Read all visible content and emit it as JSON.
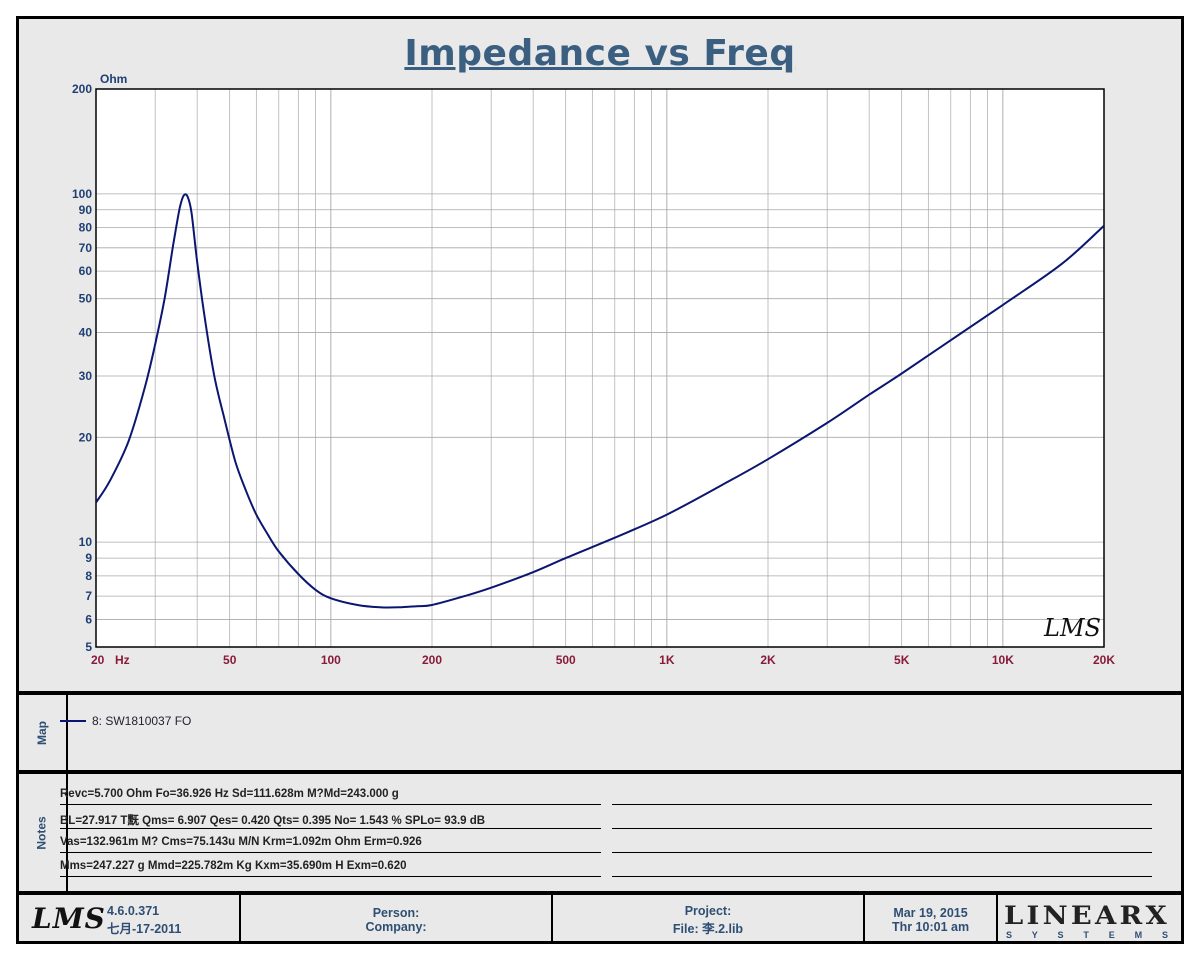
{
  "chart_data": {
    "type": "line",
    "title": "Impedance vs Freq",
    "ylabel": "Ohm",
    "xlabel_unit": "Hz",
    "x_scale": "log",
    "y_scale": "log",
    "xlim": [
      20,
      20000
    ],
    "ylim": [
      5,
      200
    ],
    "grid": true,
    "x_ticks": [
      {
        "value": 20,
        "label": "20"
      },
      {
        "value": 50,
        "label": "50"
      },
      {
        "value": 100,
        "label": "100"
      },
      {
        "value": 200,
        "label": "200"
      },
      {
        "value": 500,
        "label": "500"
      },
      {
        "value": 1000,
        "label": "1K"
      },
      {
        "value": 2000,
        "label": "2K"
      },
      {
        "value": 5000,
        "label": "5K"
      },
      {
        "value": 10000,
        "label": "10K"
      },
      {
        "value": 20000,
        "label": "20K"
      }
    ],
    "y_ticks": [
      {
        "value": 5,
        "label": "5"
      },
      {
        "value": 6,
        "label": "6"
      },
      {
        "value": 7,
        "label": "7"
      },
      {
        "value": 8,
        "label": "8"
      },
      {
        "value": 9,
        "label": "9"
      },
      {
        "value": 10,
        "label": "10"
      },
      {
        "value": 20,
        "label": "20"
      },
      {
        "value": 30,
        "label": "30"
      },
      {
        "value": 40,
        "label": "40"
      },
      {
        "value": 50,
        "label": "50"
      },
      {
        "value": 60,
        "label": "60"
      },
      {
        "value": 70,
        "label": "70"
      },
      {
        "value": 80,
        "label": "80"
      },
      {
        "value": 90,
        "label": "90"
      },
      {
        "value": 100,
        "label": "100"
      },
      {
        "value": 200,
        "label": "200"
      }
    ],
    "series": [
      {
        "name": "8: SW1810037 FO",
        "color": "#0a1670",
        "x": [
          20,
          22,
          25,
          28,
          30,
          32,
          34,
          35.5,
          36.5,
          37.5,
          38.5,
          40,
          42,
          45,
          48,
          52,
          56,
          60,
          65,
          70,
          80,
          90,
          100,
          120,
          140,
          160,
          180,
          200,
          250,
          300,
          400,
          500,
          700,
          1000,
          1500,
          2000,
          3000,
          4000,
          5000,
          7000,
          10000,
          15000,
          20000
        ],
        "y": [
          13,
          15,
          19.5,
          28,
          37,
          50,
          72,
          91,
          99,
          98,
          88,
          64,
          45,
          30,
          23,
          17,
          14,
          12,
          10.5,
          9.4,
          8.1,
          7.3,
          6.9,
          6.6,
          6.5,
          6.5,
          6.55,
          6.6,
          7,
          7.4,
          8.2,
          9,
          10.3,
          12,
          14.8,
          17.3,
          22,
          26.5,
          30.5,
          38,
          48,
          63,
          81
        ]
      }
    ]
  },
  "map": {
    "label": "Map",
    "entries": [
      "8: SW1810037 FO"
    ]
  },
  "notes": {
    "label": "Notes",
    "lines": [
      "Revc=5.700 Ohm  Fo=36.926 Hz  Sd=111.628m M?Md=243.000 g",
      "BL=27.917 T黖  Qms= 6.907  Qes= 0.420  Qts= 0.395  No= 1.543 %  SPLo= 93.9 dB",
      "Vas=132.961m M? Cms=75.143u M/N  Krm=1.092m Ohm  Erm=0.926",
      "Mms=247.227 g  Mmd=225.782m Kg  Kxm=35.690m H  Exm=0.620"
    ]
  },
  "watermark": "LMS",
  "footer": {
    "logo_text": "LMS",
    "version": "4.6.0.371",
    "version_date": "七月-17-2011",
    "person_label": "Person:",
    "company_label": "Company:",
    "project_label": "Project:",
    "file_label": "File: 李.2.lib",
    "date": "Mar 19, 2015",
    "time": "Thr 10:01 am",
    "brand": "LINEARX",
    "brand_sub": "S Y S T E M S"
  },
  "colors": {
    "frame_bg": "#e9e9e9",
    "plot_bg": "#ffffff",
    "grid": "#a8a8a8",
    "curve": "#0a1670",
    "title": "#3b5f80",
    "y_tick": "#1f3f73",
    "x_tick": "#8a1a3a"
  }
}
